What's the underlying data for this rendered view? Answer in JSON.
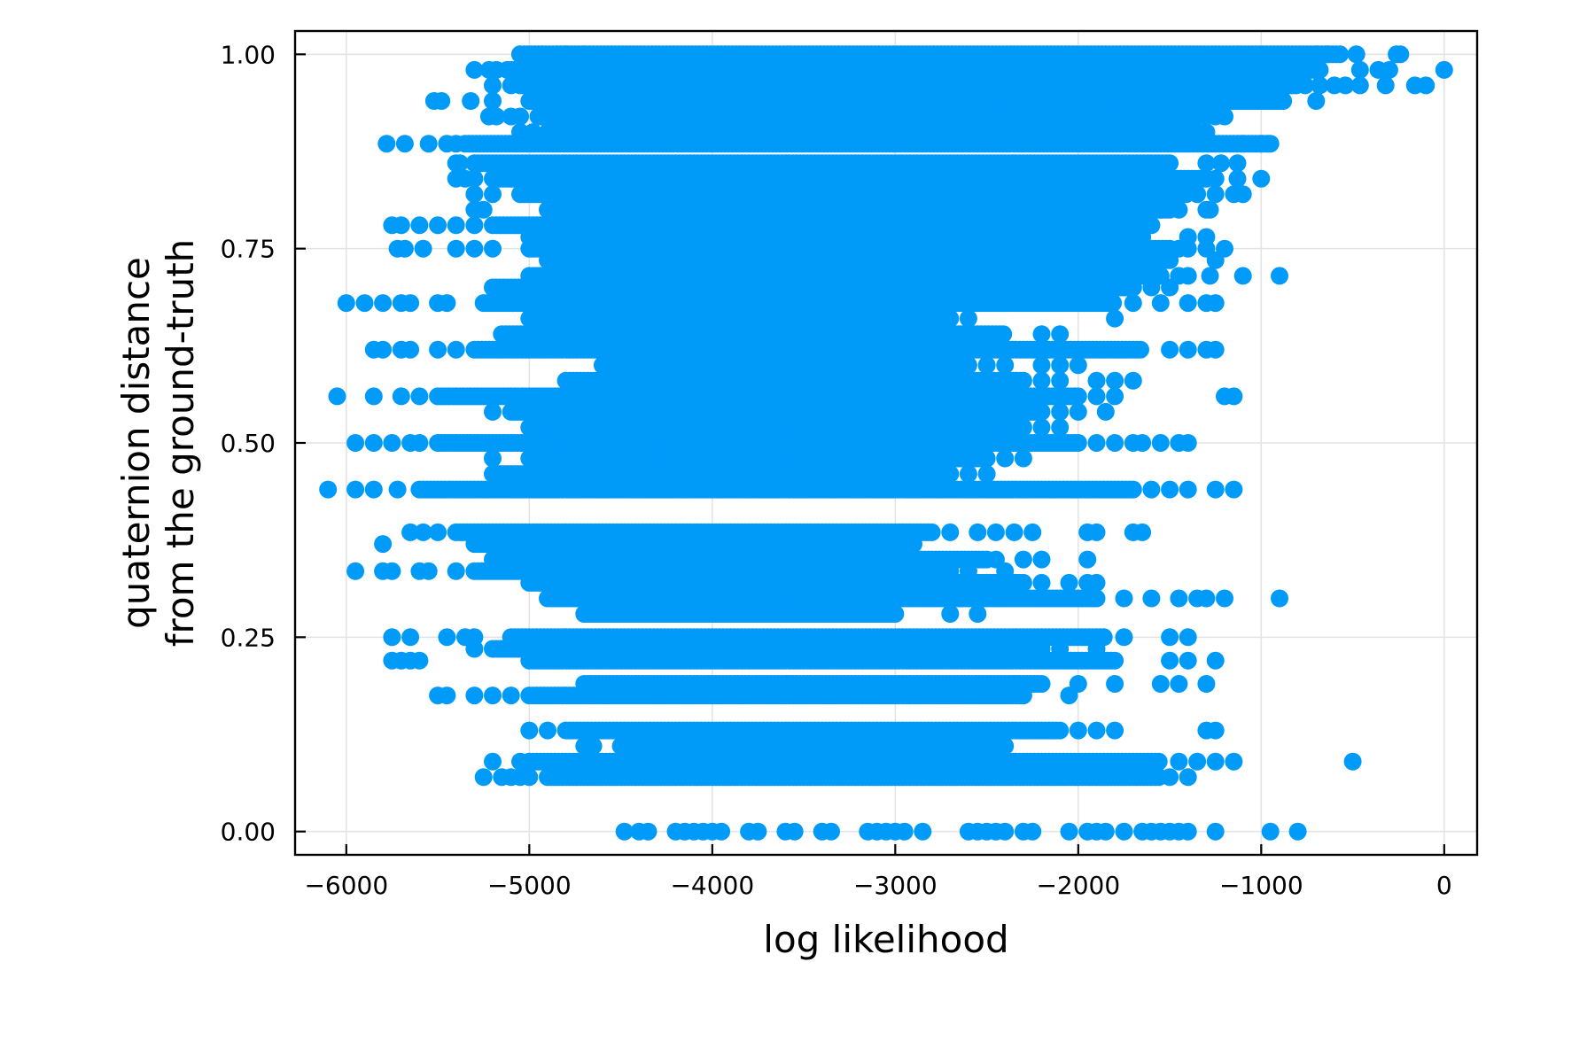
{
  "chart_data": {
    "type": "scatter",
    "title": "",
    "xlabel": "log likelihood",
    "ylabel_lines": [
      "quaternion distance",
      "from the ground-truth"
    ],
    "xlim": [
      -6280,
      180
    ],
    "ylim": [
      -0.03,
      1.03
    ],
    "xticks": [
      -6000,
      -5000,
      -4000,
      -3000,
      -2000,
      -1000,
      0
    ],
    "xtick_labels": [
      "−6000",
      "−5000",
      "−4000",
      "−3000",
      "−2000",
      "−1000",
      "0"
    ],
    "yticks": [
      0.0,
      0.25,
      0.5,
      0.75,
      1.0
    ],
    "ytick_labels": [
      "0.00",
      "0.25",
      "0.50",
      "0.75",
      "1.00"
    ],
    "grid": true,
    "legend": "none",
    "marker_color": "#009af9",
    "series": [
      {
        "rows": [
          {
            "y": 1.0,
            "dense": [
              -5050,
              -560
            ],
            "sparse": [
              -5050,
              -4930,
              -4850,
              -4800,
              -4700,
              -700,
              -640,
              -480,
              -260,
              -240
            ]
          },
          {
            "y": 0.98,
            "dense": [
              -5100,
              -700
            ],
            "sparse": [
              -5300,
              -5220,
              -5180,
              -5120,
              -680,
              -460,
              -360,
              -300,
              0
            ]
          },
          {
            "y": 0.96,
            "dense": [
              -5050,
              -800
            ],
            "sparse": [
              -5200,
              -5100,
              -760,
              -680,
              -600,
              -540,
              -460,
              -160,
              -320,
              -100
            ]
          },
          {
            "y": 0.94,
            "dense": [
              -5000,
              -900
            ],
            "sparse": [
              -5520,
              -5480,
              -5320,
              -5200,
              -880,
              -700,
              -1250
            ]
          },
          {
            "y": 0.92,
            "dense": [
              -4950,
              -1350
            ],
            "sparse": [
              -5220,
              -5180,
              -5100,
              -5050,
              -1300,
              -1250,
              -1200
            ]
          },
          {
            "y": 0.9,
            "dense": [
              -4900,
              -1400
            ],
            "sparse": [
              -5050,
              -4980,
              -1350,
              -1300
            ]
          },
          {
            "y": 0.885,
            "dense": [
              -5350,
              -950
            ],
            "sparse": [
              -5780,
              -5680,
              -5550,
              -5450,
              -5400,
              -1100,
              -1000,
              -960
            ]
          },
          {
            "y": 0.86,
            "dense": [
              -5300,
              -1500
            ],
            "sparse": [
              -5400,
              -5380,
              -1300,
              -1220,
              -1130
            ]
          },
          {
            "y": 0.84,
            "dense": [
              -5200,
              -1300
            ],
            "sparse": [
              -5400,
              -5350,
              -5300,
              -1250,
              -1130,
              -1000
            ]
          },
          {
            "y": 0.82,
            "dense": [
              -5050,
              -1400
            ],
            "sparse": [
              -5300,
              -5200,
              -1350,
              -1250,
              -1150,
              -1100
            ]
          },
          {
            "y": 0.8,
            "dense": [
              -4900,
              -1500
            ],
            "sparse": [
              -5300,
              -5250,
              -1550,
              -1450,
              -1300,
              -1280
            ]
          },
          {
            "y": 0.78,
            "dense": [
              -5200,
              -1600
            ],
            "sparse": [
              -5750,
              -5700,
              -5600,
              -5500,
              -5400,
              -5300
            ]
          },
          {
            "y": 0.765,
            "dense": [
              -5000,
              -1700
            ],
            "sparse": [
              -1650,
              -1400,
              -1300
            ]
          },
          {
            "y": 0.75,
            "dense": [
              -5000,
              -1500
            ],
            "sparse": [
              -5720,
              -5680,
              -5580,
              -5400,
              -5300,
              -5200,
              -1450,
              -1400,
              -1300,
              -1200
            ]
          },
          {
            "y": 0.735,
            "dense": [
              -4900,
              -1500
            ],
            "sparse": [
              -1250
            ]
          },
          {
            "y": 0.715,
            "dense": [
              -5000,
              -1600
            ],
            "sparse": [
              -1550,
              -1450,
              -1400,
              -1280,
              -1100,
              -900
            ]
          },
          {
            "y": 0.7,
            "dense": [
              -5200,
              -1700
            ],
            "sparse": [
              -1600,
              -1500
            ]
          },
          {
            "y": 0.68,
            "dense": [
              -5250,
              -1800
            ],
            "sparse": [
              -6000,
              -5900,
              -5800,
              -5700,
              -5650,
              -5500,
              -5450,
              -1700,
              -1550,
              -1400,
              -1300,
              -1250
            ]
          },
          {
            "y": 0.66,
            "dense": [
              -5000,
              -2700
            ],
            "sparse": [
              -2600,
              -1800
            ]
          },
          {
            "y": 0.64,
            "dense": [
              -5150,
              -2400
            ],
            "sparse": [
              -2200,
              -2100
            ]
          },
          {
            "y": 0.62,
            "dense": [
              -5300,
              -1650
            ],
            "sparse": [
              -5850,
              -5800,
              -5700,
              -5650,
              -5500,
              -5400,
              -1500,
              -1400,
              -1300,
              -1250
            ]
          },
          {
            "y": 0.6,
            "dense": [
              -4600,
              -2600
            ],
            "sparse": [
              -2500,
              -2400,
              -2200,
              -2100,
              -2000
            ]
          },
          {
            "y": 0.58,
            "dense": [
              -4800,
              -2300
            ],
            "sparse": [
              -2200,
              -2100,
              -1900,
              -1800,
              -1700
            ]
          },
          {
            "y": 0.56,
            "dense": [
              -5500,
              -2000
            ],
            "sparse": [
              -6050,
              -5850,
              -5700,
              -5600,
              -1900,
              -1800,
              -1200,
              -1150
            ]
          },
          {
            "y": 0.54,
            "dense": [
              -5100,
              -2200
            ],
            "sparse": [
              -5200,
              -2100,
              -2000,
              -1850
            ]
          },
          {
            "y": 0.52,
            "dense": [
              -5000,
              -2300
            ],
            "sparse": [
              -2200,
              -2100
            ]
          },
          {
            "y": 0.5,
            "dense": [
              -5500,
              -2000
            ],
            "sparse": [
              -5950,
              -5850,
              -5750,
              -5650,
              -5600,
              -1900,
              -1800,
              -1700,
              -1650,
              -1550,
              -1450,
              -1400
            ]
          },
          {
            "y": 0.48,
            "dense": [
              -5000,
              -2500
            ],
            "sparse": [
              -5200,
              -2400,
              -2300
            ]
          },
          {
            "y": 0.46,
            "dense": [
              -5200,
              -2700
            ],
            "sparse": [
              -2600,
              -2500
            ]
          },
          {
            "y": 0.44,
            "dense": [
              -5600,
              -1700
            ],
            "sparse": [
              -6100,
              -5950,
              -5850,
              -5720,
              -1600,
              -1500,
              -1400,
              -1250,
              -1150
            ]
          },
          {
            "y": 0.385,
            "dense": [
              -5400,
              -2800
            ],
            "sparse": [
              -5650,
              -5580,
              -5500,
              -2700,
              -2550,
              -2450,
              -2350,
              -2250,
              -1950,
              -1900,
              -1700,
              -1650
            ]
          },
          {
            "y": 0.37,
            "dense": [
              -5300,
              -2900
            ],
            "sparse": [
              -5800
            ]
          },
          {
            "y": 0.35,
            "dense": [
              -5200,
              -2500
            ],
            "sparse": [
              -2450,
              -2300,
              -2200,
              -1950
            ]
          },
          {
            "y": 0.335,
            "dense": [
              -5300,
              -2700
            ],
            "sparse": [
              -5950,
              -5800,
              -5750,
              -5600,
              -5550,
              -5400,
              -2600,
              -2400
            ]
          },
          {
            "y": 0.32,
            "dense": [
              -5000,
              -2300
            ],
            "sparse": [
              -2200,
              -2050,
              -1950,
              -1900
            ]
          },
          {
            "y": 0.3,
            "dense": [
              -4900,
              -1900
            ],
            "sparse": [
              -1750,
              -1600,
              -1450,
              -1350,
              -1300,
              -1200,
              -900
            ]
          },
          {
            "y": 0.28,
            "dense": [
              -4700,
              -3000
            ],
            "sparse": [
              -2700,
              -2550
            ]
          },
          {
            "y": 0.25,
            "dense": [
              -5100,
              -1850
            ],
            "sparse": [
              -5750,
              -5650,
              -5450,
              -5350,
              -5300,
              -1750,
              -1500,
              -1400
            ]
          },
          {
            "y": 0.235,
            "dense": [
              -5200,
              -2200
            ],
            "sparse": [
              -5300,
              -2100,
              -1900
            ]
          },
          {
            "y": 0.22,
            "dense": [
              -5000,
              -1800
            ],
            "sparse": [
              -5750,
              -5700,
              -5650,
              -5600,
              -1500,
              -1400,
              -1250
            ]
          },
          {
            "y": 0.19,
            "dense": [
              -4700,
              -2200
            ],
            "sparse": [
              -2000,
              -1800,
              -1550,
              -1450,
              -1300
            ]
          },
          {
            "y": 0.175,
            "dense": [
              -5000,
              -2300
            ],
            "sparse": [
              -5500,
              -5450,
              -5300,
              -5200,
              -5100,
              -2050
            ]
          },
          {
            "y": 0.13,
            "dense": [
              -4800,
              -2100
            ],
            "sparse": [
              -5000,
              -4900,
              -2000,
              -1900,
              -1800,
              -1300,
              -1250
            ]
          },
          {
            "y": 0.11,
            "dense": [
              -4500,
              -2400
            ],
            "sparse": [
              -4700,
              -4650
            ]
          },
          {
            "y": 0.09,
            "dense": [
              -5000,
              -1550
            ],
            "sparse": [
              -5200,
              -5050,
              -1450,
              -1350,
              -1250,
              -1150,
              -500
            ]
          },
          {
            "y": 0.07,
            "dense": [
              -4900,
              -1550
            ],
            "sparse": [
              -5250,
              -5150,
              -5100,
              -5050,
              -5000,
              -1500,
              -1400
            ]
          },
          {
            "y": 0.0,
            "dense": null,
            "sparse": [
              -4480,
              -4400,
              -4350,
              -4200,
              -4150,
              -4100,
              -4050,
              -4000,
              -3950,
              -3800,
              -3750,
              -3600,
              -3550,
              -3400,
              -3350,
              -3150,
              -3100,
              -3050,
              -3000,
              -2950,
              -2850,
              -2600,
              -2550,
              -2500,
              -2450,
              -2400,
              -2300,
              -2250,
              -2050,
              -1950,
              -1900,
              -1850,
              -1750,
              -1650,
              -1600,
              -1550,
              -1500,
              -1450,
              -1400,
              -1250,
              -950,
              -800
            ]
          }
        ]
      }
    ]
  }
}
